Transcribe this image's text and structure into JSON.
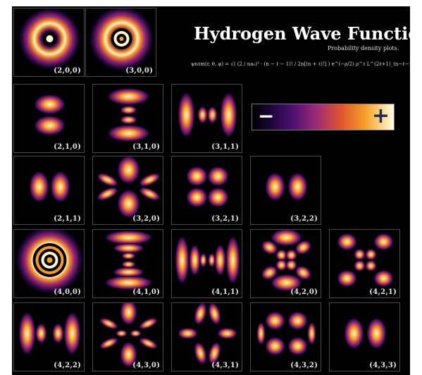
{
  "title": "Hydrogen Wave Function",
  "subtitle": "Probability density plots.",
  "formula": "ψnℓm(r, θ, φ) = √( (2 / na₀)³ · (n − ℓ − 1)! / 2n[(n + ℓ)!] ) e^(−ρ/2) ρ^ℓ L^(2ℓ+1)_(n−ℓ−1)(ρ) · Yℓm(θ, φ)",
  "colorbar": {
    "min_label": "−",
    "max_label": "+"
  },
  "colors": {
    "background": "#000000",
    "low": "#2a0a4a",
    "mid": "#b0306a",
    "high": "#f59a28",
    "peak": "#fff6dc"
  },
  "orbitals": [
    {
      "label": "(2,0,0)",
      "shape": "s2"
    },
    {
      "label": "(3,0,0)",
      "shape": "s3"
    },
    {
      "label": "(2,1,0)",
      "shape": "p210"
    },
    {
      "label": "(3,1,0)",
      "shape": "p310"
    },
    {
      "label": "(3,1,1)",
      "shape": "p311"
    },
    {
      "label": "(2,1,1)",
      "shape": "p211"
    },
    {
      "label": "(3,2,0)",
      "shape": "d320"
    },
    {
      "label": "(3,2,1)",
      "shape": "d321"
    },
    {
      "label": "(3,2,2)",
      "shape": "d322"
    },
    {
      "label": "(4,0,0)",
      "shape": "s4"
    },
    {
      "label": "(4,1,0)",
      "shape": "p410"
    },
    {
      "label": "(4,1,1)",
      "shape": "p411"
    },
    {
      "label": "(4,2,0)",
      "shape": "d420"
    },
    {
      "label": "(4,2,1)",
      "shape": "d421"
    },
    {
      "label": "(4,2,2)",
      "shape": "d422"
    },
    {
      "label": "(4,3,0)",
      "shape": "f430"
    },
    {
      "label": "(4,3,1)",
      "shape": "f431"
    },
    {
      "label": "(4,3,2)",
      "shape": "f432"
    },
    {
      "label": "(4,3,3)",
      "shape": "f433"
    }
  ]
}
